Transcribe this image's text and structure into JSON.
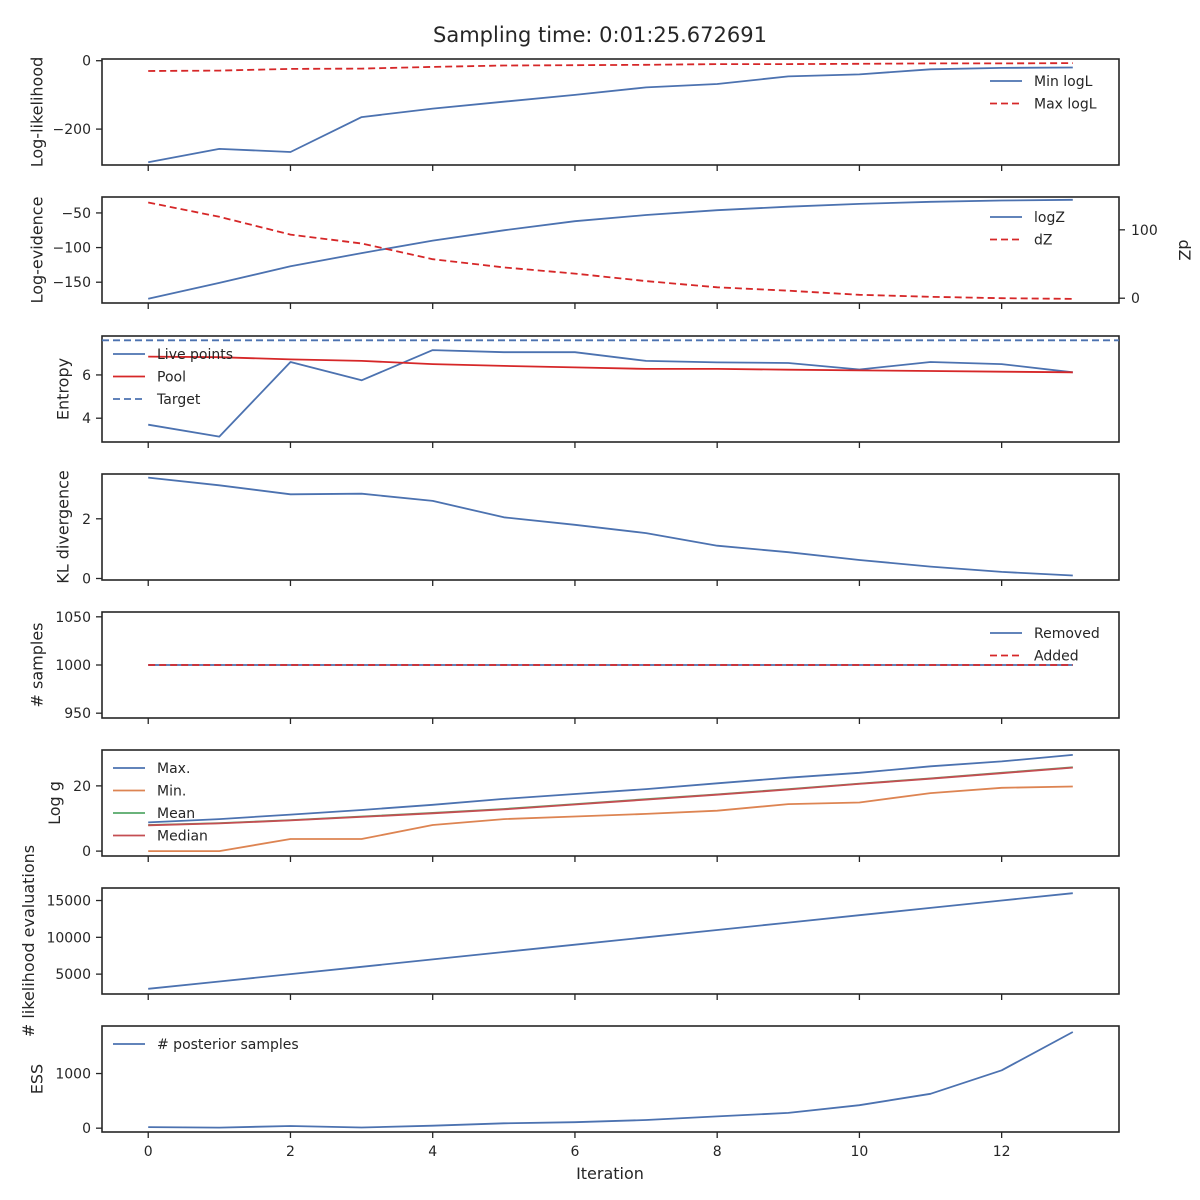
{
  "figure": {
    "title": "Sampling time: 0:01:25.672691",
    "xlabel": "Iteration",
    "x_ticks": [
      0,
      2,
      4,
      6,
      8,
      10,
      12
    ]
  },
  "colors": {
    "blue": "#4c72b0",
    "red": "#c44e52",
    "crimson": "#d62728",
    "orange": "#dd8452",
    "green": "#55a868",
    "axis": "#262626"
  },
  "chart_data": [
    {
      "id": "loglikelihood",
      "type": "line",
      "ylabel": "Log-likelihood",
      "x": [
        0,
        1,
        2,
        3,
        4,
        5,
        6,
        7,
        8,
        9,
        10,
        11,
        12,
        13
      ],
      "xlim": [
        -0.65,
        13.65
      ],
      "ylim": [
        -305,
        5
      ],
      "yticks": [
        0,
        -200
      ],
      "legend": "right",
      "series": [
        {
          "name": "Min logL",
          "color": "#4c72b0",
          "dash": false,
          "values": [
            -297,
            -258,
            -267,
            -165,
            -140,
            -120,
            -100,
            -78,
            -68,
            -46,
            -40,
            -25,
            -21,
            -20
          ]
        },
        {
          "name": "Max logL",
          "color": "#d62728",
          "dash": true,
          "values": [
            -30,
            -29,
            -24,
            -23,
            -18,
            -14,
            -13,
            -12,
            -10,
            -10,
            -9,
            -8,
            -8,
            -7
          ]
        }
      ]
    },
    {
      "id": "logevidence",
      "type": "line",
      "ylabel": "Log-evidence",
      "ylabel_right": "dZ",
      "x": [
        0,
        1,
        2,
        3,
        4,
        5,
        6,
        7,
        8,
        9,
        10,
        11,
        12,
        13
      ],
      "xlim": [
        -0.65,
        13.65
      ],
      "ylim": [
        -180,
        -27
      ],
      "yticks": [
        -50,
        -100,
        -150
      ],
      "ylim_right": [
        -7,
        148
      ],
      "yticks_right": [
        0,
        100
      ],
      "legend": "right",
      "series": [
        {
          "name": "logZ",
          "color": "#4c72b0",
          "dash": false,
          "axis": "left",
          "values": [
            -174,
            -151,
            -127,
            -108,
            -90,
            -75,
            -62,
            -53,
            -46,
            -41,
            -37,
            -34,
            -32,
            -31
          ]
        },
        {
          "name": "dZ",
          "color": "#d62728",
          "dash": true,
          "axis": "right",
          "values": [
            140,
            119,
            93,
            80,
            57,
            45,
            36,
            25,
            16,
            11,
            5,
            2,
            0,
            -1
          ]
        }
      ]
    },
    {
      "id": "entropy",
      "type": "line",
      "ylabel": "Entropy",
      "x": [
        0,
        1,
        2,
        3,
        4,
        5,
        6,
        7,
        8,
        9,
        10,
        11,
        12,
        13
      ],
      "xlim": [
        -0.65,
        13.65
      ],
      "ylim": [
        2.9,
        7.8
      ],
      "yticks": [
        6,
        4
      ],
      "legend": "left",
      "target": 7.6,
      "series": [
        {
          "name": "Live points",
          "color": "#4c72b0",
          "dash": false,
          "values": [
            3.7,
            3.15,
            6.6,
            5.75,
            7.15,
            7.05,
            7.05,
            6.65,
            6.58,
            6.55,
            6.25,
            6.6,
            6.5,
            6.12
          ]
        },
        {
          "name": "Pool",
          "color": "#d62728",
          "dash": false,
          "values": [
            6.85,
            6.82,
            6.72,
            6.65,
            6.5,
            6.42,
            6.35,
            6.28,
            6.28,
            6.24,
            6.21,
            6.18,
            6.15,
            6.12
          ]
        },
        {
          "name": "Target",
          "color": "#4c72b0",
          "dash": true,
          "hline": 7.6
        }
      ]
    },
    {
      "id": "kl",
      "type": "line",
      "ylabel": "KL divergence",
      "x": [
        0,
        1,
        2,
        3,
        4,
        5,
        6,
        7,
        8,
        9,
        10,
        11,
        12,
        13
      ],
      "xlim": [
        -0.65,
        13.65
      ],
      "ylim": [
        -0.05,
        3.5
      ],
      "yticks": [
        2,
        0
      ],
      "series": [
        {
          "name": "",
          "color": "#4c72b0",
          "dash": false,
          "values": [
            3.38,
            3.12,
            2.82,
            2.84,
            2.6,
            2.05,
            1.8,
            1.52,
            1.1,
            0.88,
            0.62,
            0.4,
            0.22,
            0.1
          ]
        }
      ]
    },
    {
      "id": "samples",
      "type": "line",
      "ylabel": "# samples",
      "x": [
        0,
        1,
        2,
        3,
        4,
        5,
        6,
        7,
        8,
        9,
        10,
        11,
        12,
        13
      ],
      "xlim": [
        -0.65,
        13.65
      ],
      "ylim": [
        945,
        1055
      ],
      "yticks": [
        1050,
        1000,
        950
      ],
      "legend": "right",
      "series": [
        {
          "name": "Removed",
          "color": "#4c72b0",
          "dash": false,
          "values": [
            1000,
            1000,
            1000,
            1000,
            1000,
            1000,
            1000,
            1000,
            1000,
            1000,
            1000,
            1000,
            1000,
            1000
          ]
        },
        {
          "name": "Added",
          "color": "#d62728",
          "dash": true,
          "values": [
            1000,
            1000,
            1000,
            1000,
            1000,
            1000,
            1000,
            1000,
            1000,
            1000,
            1000,
            1000,
            1000,
            1000
          ]
        }
      ]
    },
    {
      "id": "logg",
      "type": "line",
      "ylabel": "Log g",
      "x": [
        0,
        1,
        2,
        3,
        4,
        5,
        6,
        7,
        8,
        9,
        10,
        11,
        12,
        13
      ],
      "xlim": [
        -0.65,
        13.65
      ],
      "ylim": [
        -1.5,
        31
      ],
      "yticks": [
        20,
        0
      ],
      "legend": "left",
      "series": [
        {
          "name": "Max.",
          "color": "#4c72b0",
          "dash": false,
          "values": [
            8.8,
            9.8,
            11.2,
            12.6,
            14.2,
            16.0,
            17.5,
            19.0,
            20.8,
            22.5,
            24.0,
            26.0,
            27.5,
            29.5
          ]
        },
        {
          "name": "Min.",
          "color": "#dd8452",
          "dash": false,
          "values": [
            0,
            0,
            3.7,
            3.7,
            8.0,
            9.8,
            10.6,
            11.4,
            12.4,
            14.4,
            14.9,
            17.8,
            19.4,
            19.8
          ]
        },
        {
          "name": "Mean",
          "color": "#55a868",
          "dash": false,
          "values": [
            8.0,
            8.6,
            9.5,
            10.6,
            11.7,
            12.9,
            14.4,
            15.9,
            17.4,
            19.0,
            20.7,
            22.3,
            24.0,
            25.7
          ]
        },
        {
          "name": "Median",
          "color": "#c44e52",
          "dash": false,
          "values": [
            7.9,
            8.5,
            9.4,
            10.5,
            11.6,
            12.8,
            14.3,
            15.8,
            17.3,
            18.9,
            20.6,
            22.2,
            23.9,
            25.6
          ]
        }
      ]
    },
    {
      "id": "likelihood_evals",
      "type": "line",
      "ylabel": "# likelihood evaluations",
      "x": [
        0,
        1,
        2,
        3,
        4,
        5,
        6,
        7,
        8,
        9,
        10,
        11,
        12,
        13
      ],
      "xlim": [
        -0.65,
        13.65
      ],
      "ylim": [
        2300,
        16700
      ],
      "yticks": [
        15000,
        10000,
        5000
      ],
      "series": [
        {
          "name": "",
          "color": "#4c72b0",
          "dash": false,
          "values": [
            3000,
            4000,
            5000,
            6000,
            7000,
            8000,
            9000,
            10000,
            11000,
            12000,
            13000,
            14000,
            15000,
            16000
          ]
        }
      ]
    },
    {
      "id": "ess",
      "type": "line",
      "ylabel": "ESS",
      "x": [
        0,
        1,
        2,
        3,
        4,
        5,
        6,
        7,
        8,
        9,
        10,
        11,
        12,
        13
      ],
      "xlim": [
        -0.65,
        13.65
      ],
      "ylim": [
        -70,
        1870
      ],
      "yticks": [
        1000,
        0
      ],
      "legend": "left",
      "series": [
        {
          "name": "# posterior samples",
          "color": "#4c72b0",
          "dash": false,
          "values": [
            20,
            10,
            40,
            12,
            45,
            90,
            110,
            150,
            215,
            280,
            420,
            630,
            1060,
            1760
          ]
        }
      ]
    }
  ]
}
